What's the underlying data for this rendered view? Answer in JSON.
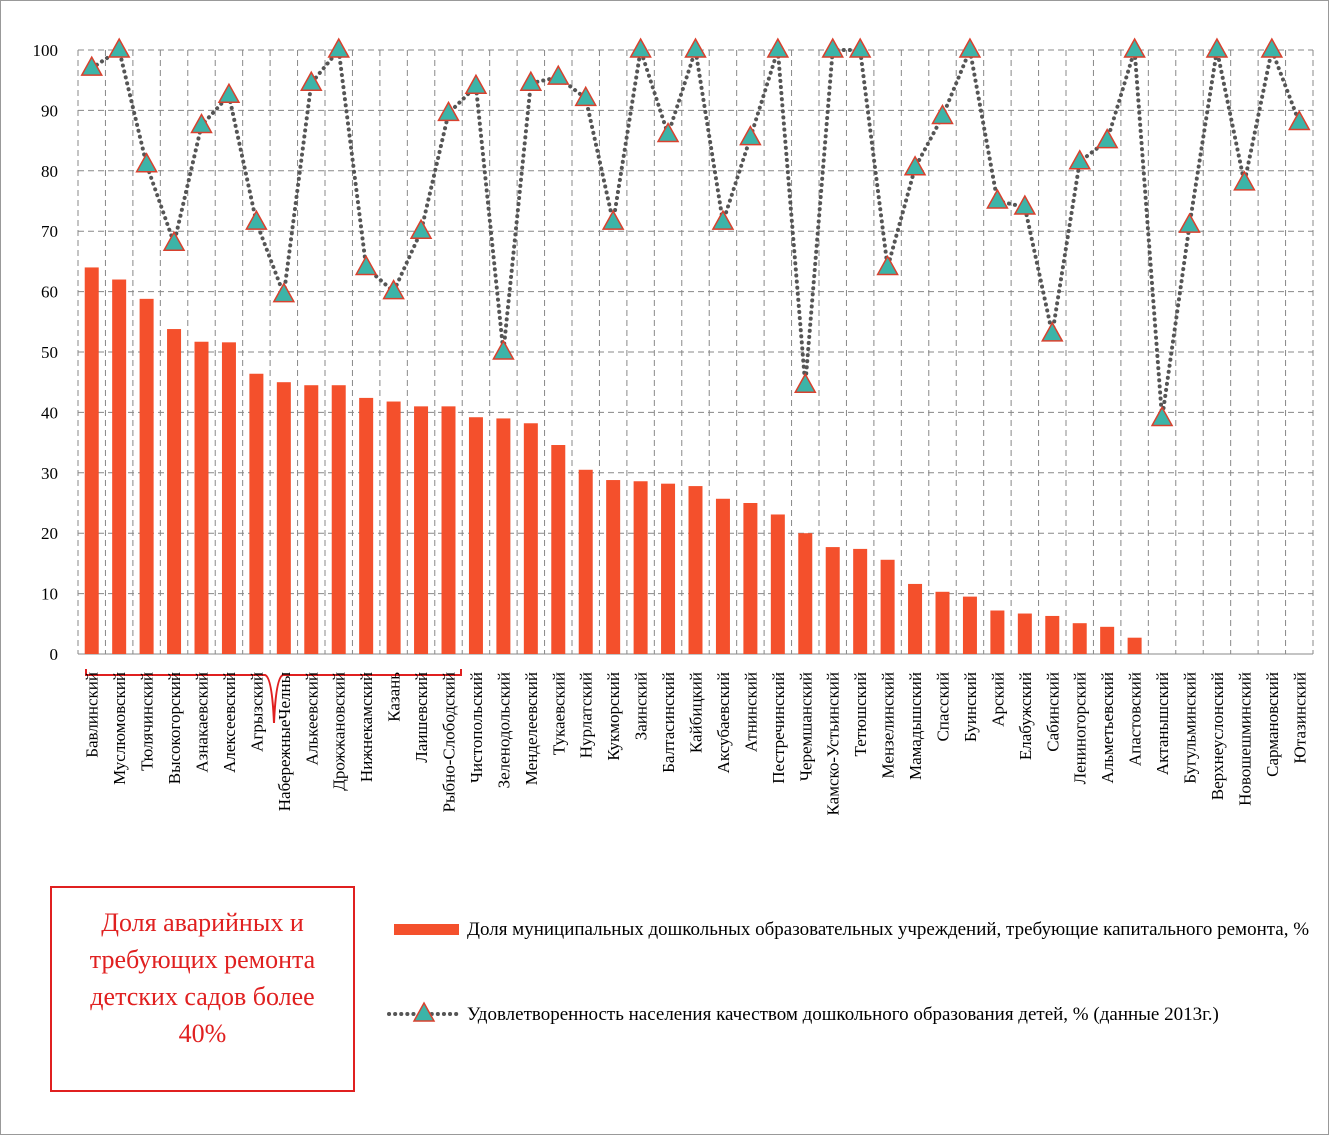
{
  "chart_data": {
    "type": "bar",
    "categories": [
      "Бавлинский",
      "Муслюмовский",
      "Тюлячинский",
      "Высокогорский",
      "Азнакаевский",
      "Алексеевский",
      "Агрызский",
      "НабережныеЧелны",
      "Алькеевский",
      "Дрожжановский",
      "Нижнекамский",
      "Казань",
      "Лаишевский",
      "Рыбно-Слободский",
      "Чистопольский",
      "Зеленодольский",
      "Менделеевский",
      "Тукаевский",
      "Нурлатский",
      "Кукморский",
      "Заинский",
      "Балтасинский",
      "Кайбицкий",
      "Аксубаевский",
      "Атнинский",
      "Пестречинский",
      "Черемшанский",
      "Камско-Устьинский",
      "Тетюшский",
      "Мензелинский",
      "Мамадышский",
      "Спасский",
      "Буинский",
      "Арский",
      "Елабужский",
      "Сабинский",
      "Лениногорский",
      "Альметьевский",
      "Апастовский",
      "Актанышский",
      "Бугульминский",
      "Верхнеуслонский",
      "Новошешминский",
      "Сармановский",
      "Ютазинский"
    ],
    "series": [
      {
        "name": "Доля муниципальных дошкольных образовательных учреждений, требующие капитального ремонта, %",
        "type": "bar",
        "color": "#f4502c",
        "values": [
          64,
          62,
          58.8,
          53.8,
          51.7,
          51.6,
          46.4,
          45,
          44.5,
          44.5,
          42.4,
          41.8,
          41,
          41,
          39.2,
          39,
          38.2,
          34.6,
          30.5,
          28.8,
          28.6,
          28.2,
          27.8,
          25.7,
          25,
          23.1,
          20,
          17.7,
          17.4,
          15.6,
          11.6,
          10.3,
          9.5,
          7.2,
          6.7,
          6.3,
          5.1,
          4.5,
          2.7,
          null,
          null,
          null,
          null,
          null,
          null
        ]
      },
      {
        "name": "Удовлетворенность населения качеством дошкольного образования детей, % (данные 2013г.)",
        "type": "line",
        "color": "#3cb4a8",
        "values": [
          97,
          100,
          81,
          68,
          87.5,
          92.5,
          71.5,
          59.5,
          94.5,
          100,
          64,
          60,
          70,
          89.5,
          94,
          50,
          94.5,
          95.5,
          92,
          71.5,
          100,
          86,
          100,
          71.5,
          85.5,
          100,
          44.5,
          100,
          100,
          64,
          80.5,
          89,
          100,
          75,
          74,
          53,
          81.5,
          85,
          100,
          39,
          71,
          100,
          78,
          100,
          88
        ]
      }
    ],
    "ylim": [
      0,
      100
    ],
    "yticks": [
      0,
      10,
      20,
      30,
      40,
      50,
      60,
      70,
      80,
      90,
      100
    ],
    "grid": true,
    "annotation": "Доля аварийных и требующих ремонта детских садов более 40%"
  }
}
